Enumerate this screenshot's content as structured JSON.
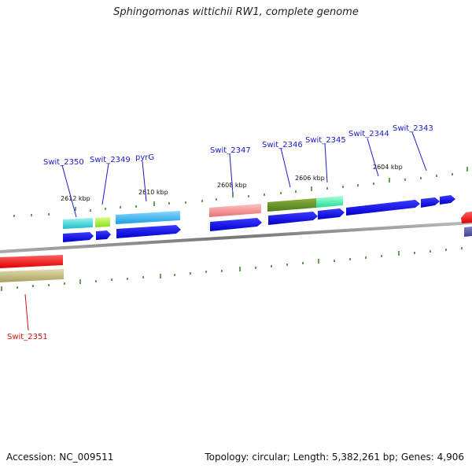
{
  "title": "Sphingomonas wittichii RW1, complete genome",
  "footer": {
    "accession": "Accession: NC_009511",
    "summary": "Topology: circular; Length: 5,382,261 bp; Genes: 4,906"
  },
  "colors": {
    "forward_cds": "#1a1aff",
    "label_blue": "#1a1acc",
    "label_red": "#cc1111",
    "tick": "#3a8a2a",
    "backbone": "#888888"
  },
  "kbp_labels": [
    {
      "text": "2612 kbp"
    },
    {
      "text": "2610 kbp"
    },
    {
      "text": "2608 kbp"
    },
    {
      "text": "2606 kbp"
    },
    {
      "text": "2604 kbp"
    }
  ],
  "gene_labels": [
    {
      "text": "Swit_2350",
      "color": "blue"
    },
    {
      "text": "Swit_2349",
      "color": "blue"
    },
    {
      "text": "pyrG",
      "color": "blue"
    },
    {
      "text": "Swit_2347",
      "color": "blue"
    },
    {
      "text": "Swit_2346",
      "color": "blue"
    },
    {
      "text": "Swit_2345",
      "color": "blue"
    },
    {
      "text": "Swit_2344",
      "color": "blue"
    },
    {
      "text": "Swit_2343",
      "color": "blue"
    },
    {
      "text": "Swit_2351",
      "color": "red"
    }
  ]
}
